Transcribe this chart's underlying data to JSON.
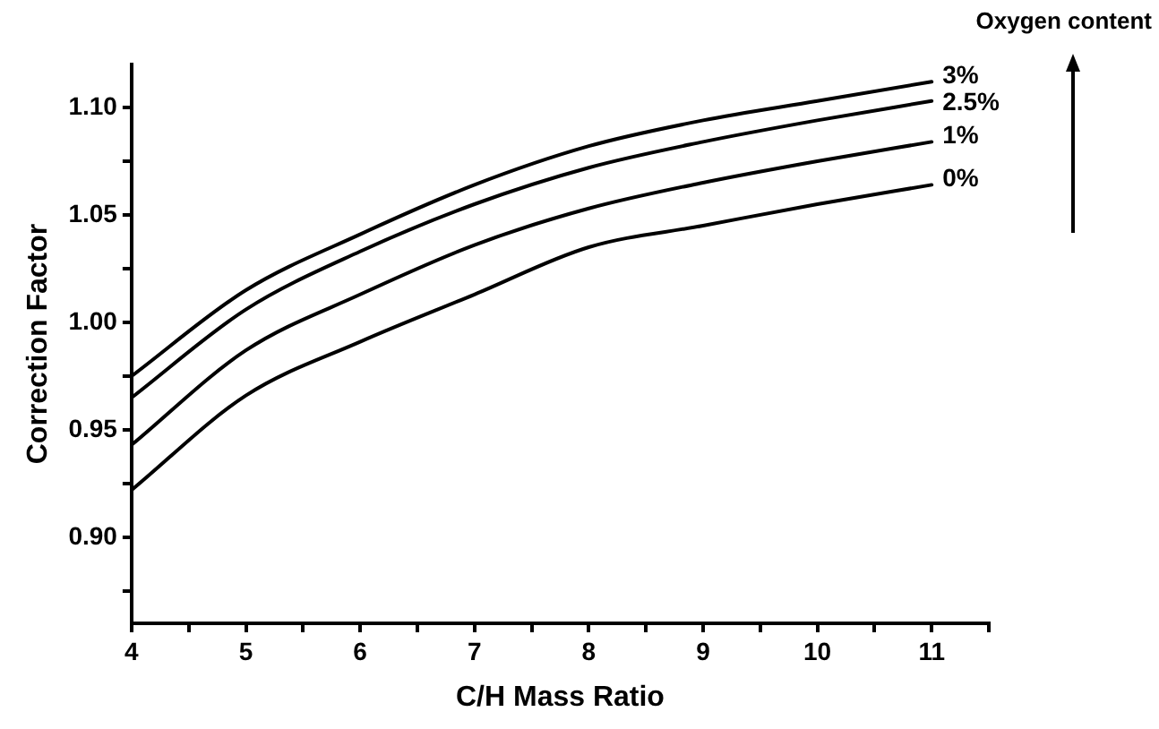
{
  "chart_data": {
    "type": "line",
    "xlabel": "C/H Mass Ratio",
    "ylabel": "Correction Factor",
    "legend_title": "Oxygen content",
    "x": [
      4,
      5,
      6,
      7,
      8,
      9,
      10,
      11
    ],
    "series": [
      {
        "name": "3%",
        "color": "#000000",
        "values": [
          0.975,
          1.015,
          1.041,
          1.064,
          1.082,
          1.094,
          1.103,
          1.112
        ]
      },
      {
        "name": "2.5%",
        "color": "#000000",
        "values": [
          0.965,
          1.006,
          1.033,
          1.055,
          1.072,
          1.084,
          1.094,
          1.103
        ]
      },
      {
        "name": "1%",
        "color": "#000000",
        "values": [
          0.943,
          0.987,
          1.013,
          1.036,
          1.053,
          1.065,
          1.075,
          1.084
        ]
      },
      {
        "name": "0%",
        "color": "#000000",
        "values": [
          0.922,
          0.966,
          0.991,
          1.013,
          1.035,
          1.045,
          1.055,
          1.064
        ]
      }
    ],
    "xlim": [
      4,
      11.5
    ],
    "xticks": [
      4,
      {
        "value": 4.5,
        "label": null
      },
      5,
      {
        "value": 5.5,
        "label": null
      },
      6,
      {
        "value": 6.5,
        "label": null
      },
      7,
      {
        "value": 7.5,
        "label": null
      },
      8,
      {
        "value": 8.5,
        "label": null
      },
      9,
      {
        "value": 9.5,
        "label": null
      },
      10,
      {
        "value": 10.5,
        "label": null
      },
      11,
      {
        "value": 11.5,
        "label": null
      }
    ],
    "ylim": [
      0.86,
      1.12
    ],
    "yticks": [
      {
        "value": 0.875,
        "label": null
      },
      {
        "value": 0.9,
        "label": "0.90"
      },
      {
        "value": 0.925,
        "label": null
      },
      {
        "value": 0.95,
        "label": "0.95"
      },
      {
        "value": 0.975,
        "label": null
      },
      {
        "value": 1.0,
        "label": "1.00"
      },
      {
        "value": 1.025,
        "label": null
      },
      {
        "value": 1.05,
        "label": "1.05"
      },
      {
        "value": 1.075,
        "label": null
      },
      {
        "value": 1.1,
        "label": "1.10"
      }
    ],
    "grid": false,
    "legend": false,
    "marker": "none",
    "line_style": "solid"
  }
}
